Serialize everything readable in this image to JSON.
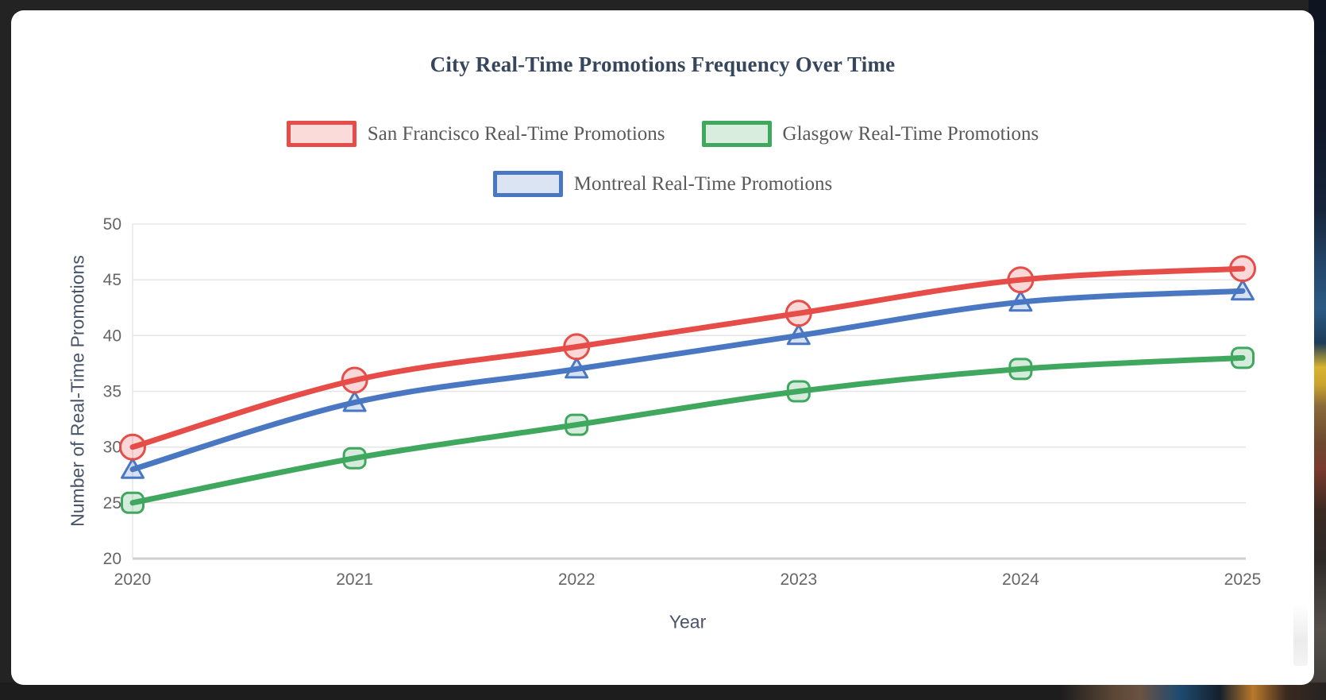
{
  "chart_data": {
    "type": "line",
    "title": "City Real-Time Promotions Frequency Over Time",
    "xlabel": "Year",
    "ylabel": "Number of Real-Time Promotions",
    "categories": [
      "2020",
      "2021",
      "2022",
      "2023",
      "2024",
      "2025"
    ],
    "series": [
      {
        "name": "San Francisco Real-Time Promotions",
        "values": [
          30,
          36,
          39,
          42,
          45,
          46
        ],
        "color": "#e64c48",
        "marker": "circle"
      },
      {
        "name": "Glasgow Real-Time Promotions",
        "values": [
          25,
          29,
          32,
          35,
          37,
          38
        ],
        "color": "#3fa75e",
        "marker": "square"
      },
      {
        "name": "Montreal Real-Time Promotions",
        "values": [
          28,
          34,
          37,
          40,
          43,
          44
        ],
        "color": "#4a77c2",
        "marker": "triangle"
      }
    ],
    "ylim": [
      20,
      50
    ],
    "ytick_step": 5,
    "yticks": [
      20,
      25,
      30,
      35,
      40,
      45,
      50
    ],
    "grid": true,
    "smooth": true,
    "legend_position": "top"
  },
  "colors": {
    "background": "#232323",
    "card": "#ffffff",
    "title_text": "#36465c",
    "legend_text": "#595959",
    "tick_text": "#666666",
    "axis_title_text": "#49546a",
    "gridline": "#e5e5e5",
    "axis_line": "#cfcfcf"
  }
}
